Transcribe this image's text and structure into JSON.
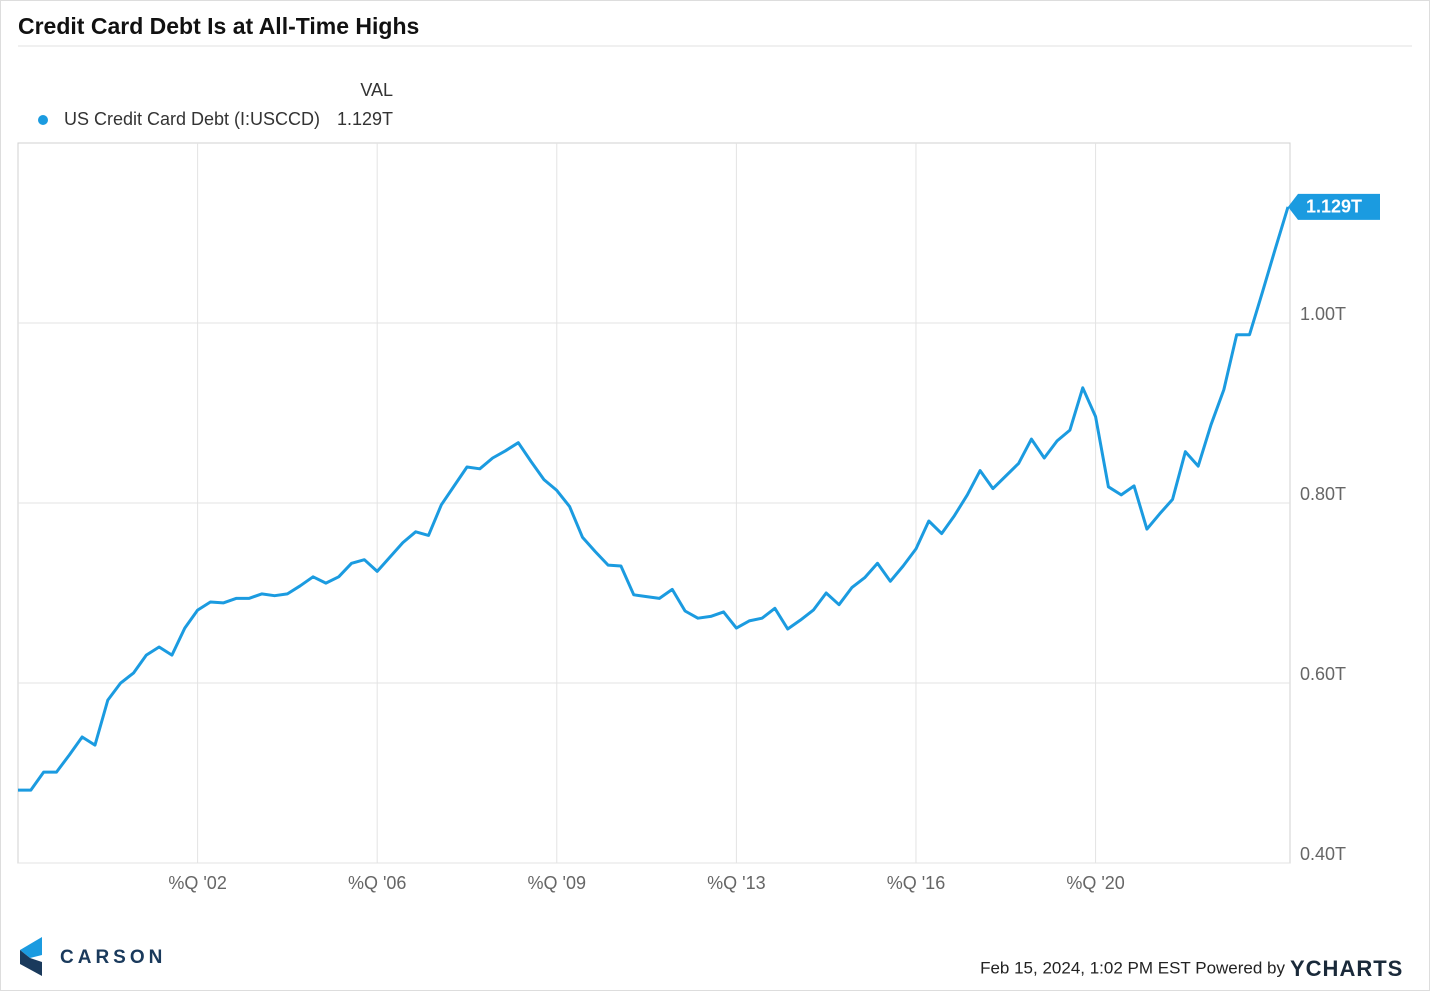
{
  "chart_data": {
    "type": "line",
    "title": "Credit Card Debt Is at All-Time Highs",
    "legend_header": "VAL",
    "x": [
      1999,
      1999.25,
      1999.5,
      1999.75,
      2000,
      2000.25,
      2000.5,
      2000.75,
      2001,
      2001.25,
      2001.5,
      2001.75,
      2002,
      2002.25,
      2002.5,
      2002.75,
      2003,
      2003.25,
      2003.5,
      2003.75,
      2004,
      2004.25,
      2004.5,
      2004.75,
      2005,
      2005.25,
      2005.5,
      2005.75,
      2006,
      2006.25,
      2006.5,
      2006.75,
      2007,
      2007.25,
      2007.5,
      2007.75,
      2008,
      2008.25,
      2008.5,
      2008.75,
      2009,
      2009.25,
      2009.5,
      2009.75,
      2010,
      2010.25,
      2010.5,
      2010.75,
      2011,
      2011.25,
      2011.5,
      2011.75,
      2012,
      2012.25,
      2012.5,
      2012.75,
      2013,
      2013.25,
      2013.5,
      2013.75,
      2014,
      2014.25,
      2014.5,
      2014.75,
      2015,
      2015.25,
      2015.5,
      2015.75,
      2016,
      2016.25,
      2016.5,
      2016.75,
      2017,
      2017.25,
      2017.5,
      2017.75,
      2018,
      2018.25,
      2018.5,
      2018.75,
      2019,
      2019.25,
      2019.5,
      2019.75,
      2020,
      2020.25,
      2020.5,
      2020.75,
      2021,
      2021.25,
      2021.5,
      2021.75,
      2022,
      2022.25,
      2022.5,
      2022.75,
      2023,
      2023.25,
      2023.5,
      2023.75
    ],
    "series": [
      {
        "name": "US Credit Card Debt (I:USCCD)",
        "color": "#1b9be0",
        "values": [
          0.481,
          0.481,
          0.501,
          0.501,
          0.52,
          0.54,
          0.531,
          0.581,
          0.6,
          0.611,
          0.631,
          0.64,
          0.631,
          0.661,
          0.681,
          0.69,
          0.689,
          0.694,
          0.694,
          0.699,
          0.697,
          0.699,
          0.708,
          0.718,
          0.711,
          0.718,
          0.733,
          0.737,
          0.724,
          0.74,
          0.756,
          0.768,
          0.764,
          0.798,
          0.819,
          0.84,
          0.838,
          0.85,
          0.858,
          0.867,
          0.846,
          0.826,
          0.814,
          0.796,
          0.762,
          0.746,
          0.731,
          0.73,
          0.698,
          0.696,
          0.694,
          0.704,
          0.68,
          0.672,
          0.674,
          0.679,
          0.661,
          0.669,
          0.672,
          0.683,
          0.66,
          0.67,
          0.681,
          0.7,
          0.687,
          0.706,
          0.717,
          0.733,
          0.713,
          0.73,
          0.749,
          0.78,
          0.766,
          0.786,
          0.809,
          0.836,
          0.816,
          0.83,
          0.844,
          0.871,
          0.85,
          0.869,
          0.881,
          0.928,
          0.896,
          0.818,
          0.809,
          0.819,
          0.771,
          0.788,
          0.804,
          0.857,
          0.841,
          0.887,
          0.926,
          0.987,
          0.987,
          1.034,
          1.082,
          1.129
        ],
        "latest": {
          "value": 1.129,
          "label": "1.129T"
        }
      }
    ],
    "xlim": [
      1999,
      2023.75
    ],
    "xticks": [
      {
        "value": 2002.5,
        "label": "%Q '02"
      },
      {
        "value": 2006,
        "label": "%Q '06"
      },
      {
        "value": 2009.5,
        "label": "%Q '09"
      },
      {
        "value": 2013,
        "label": "%Q '13"
      },
      {
        "value": 2016.5,
        "label": "%Q '16"
      },
      {
        "value": 2020,
        "label": "%Q '20"
      }
    ],
    "ylim": [
      0.4,
      1.2
    ],
    "yticks": [
      {
        "value": 0.4,
        "label": "0.40T"
      },
      {
        "value": 0.6,
        "label": "0.60T"
      },
      {
        "value": 0.8,
        "label": "0.80T"
      },
      {
        "value": 1.0,
        "label": "1.00T"
      }
    ],
    "grid": true
  },
  "footer": {
    "brand": "CARSON",
    "timestamp": "Feb 15, 2024, 1:02 PM EST Powered by",
    "provider": "YCHARTS"
  }
}
